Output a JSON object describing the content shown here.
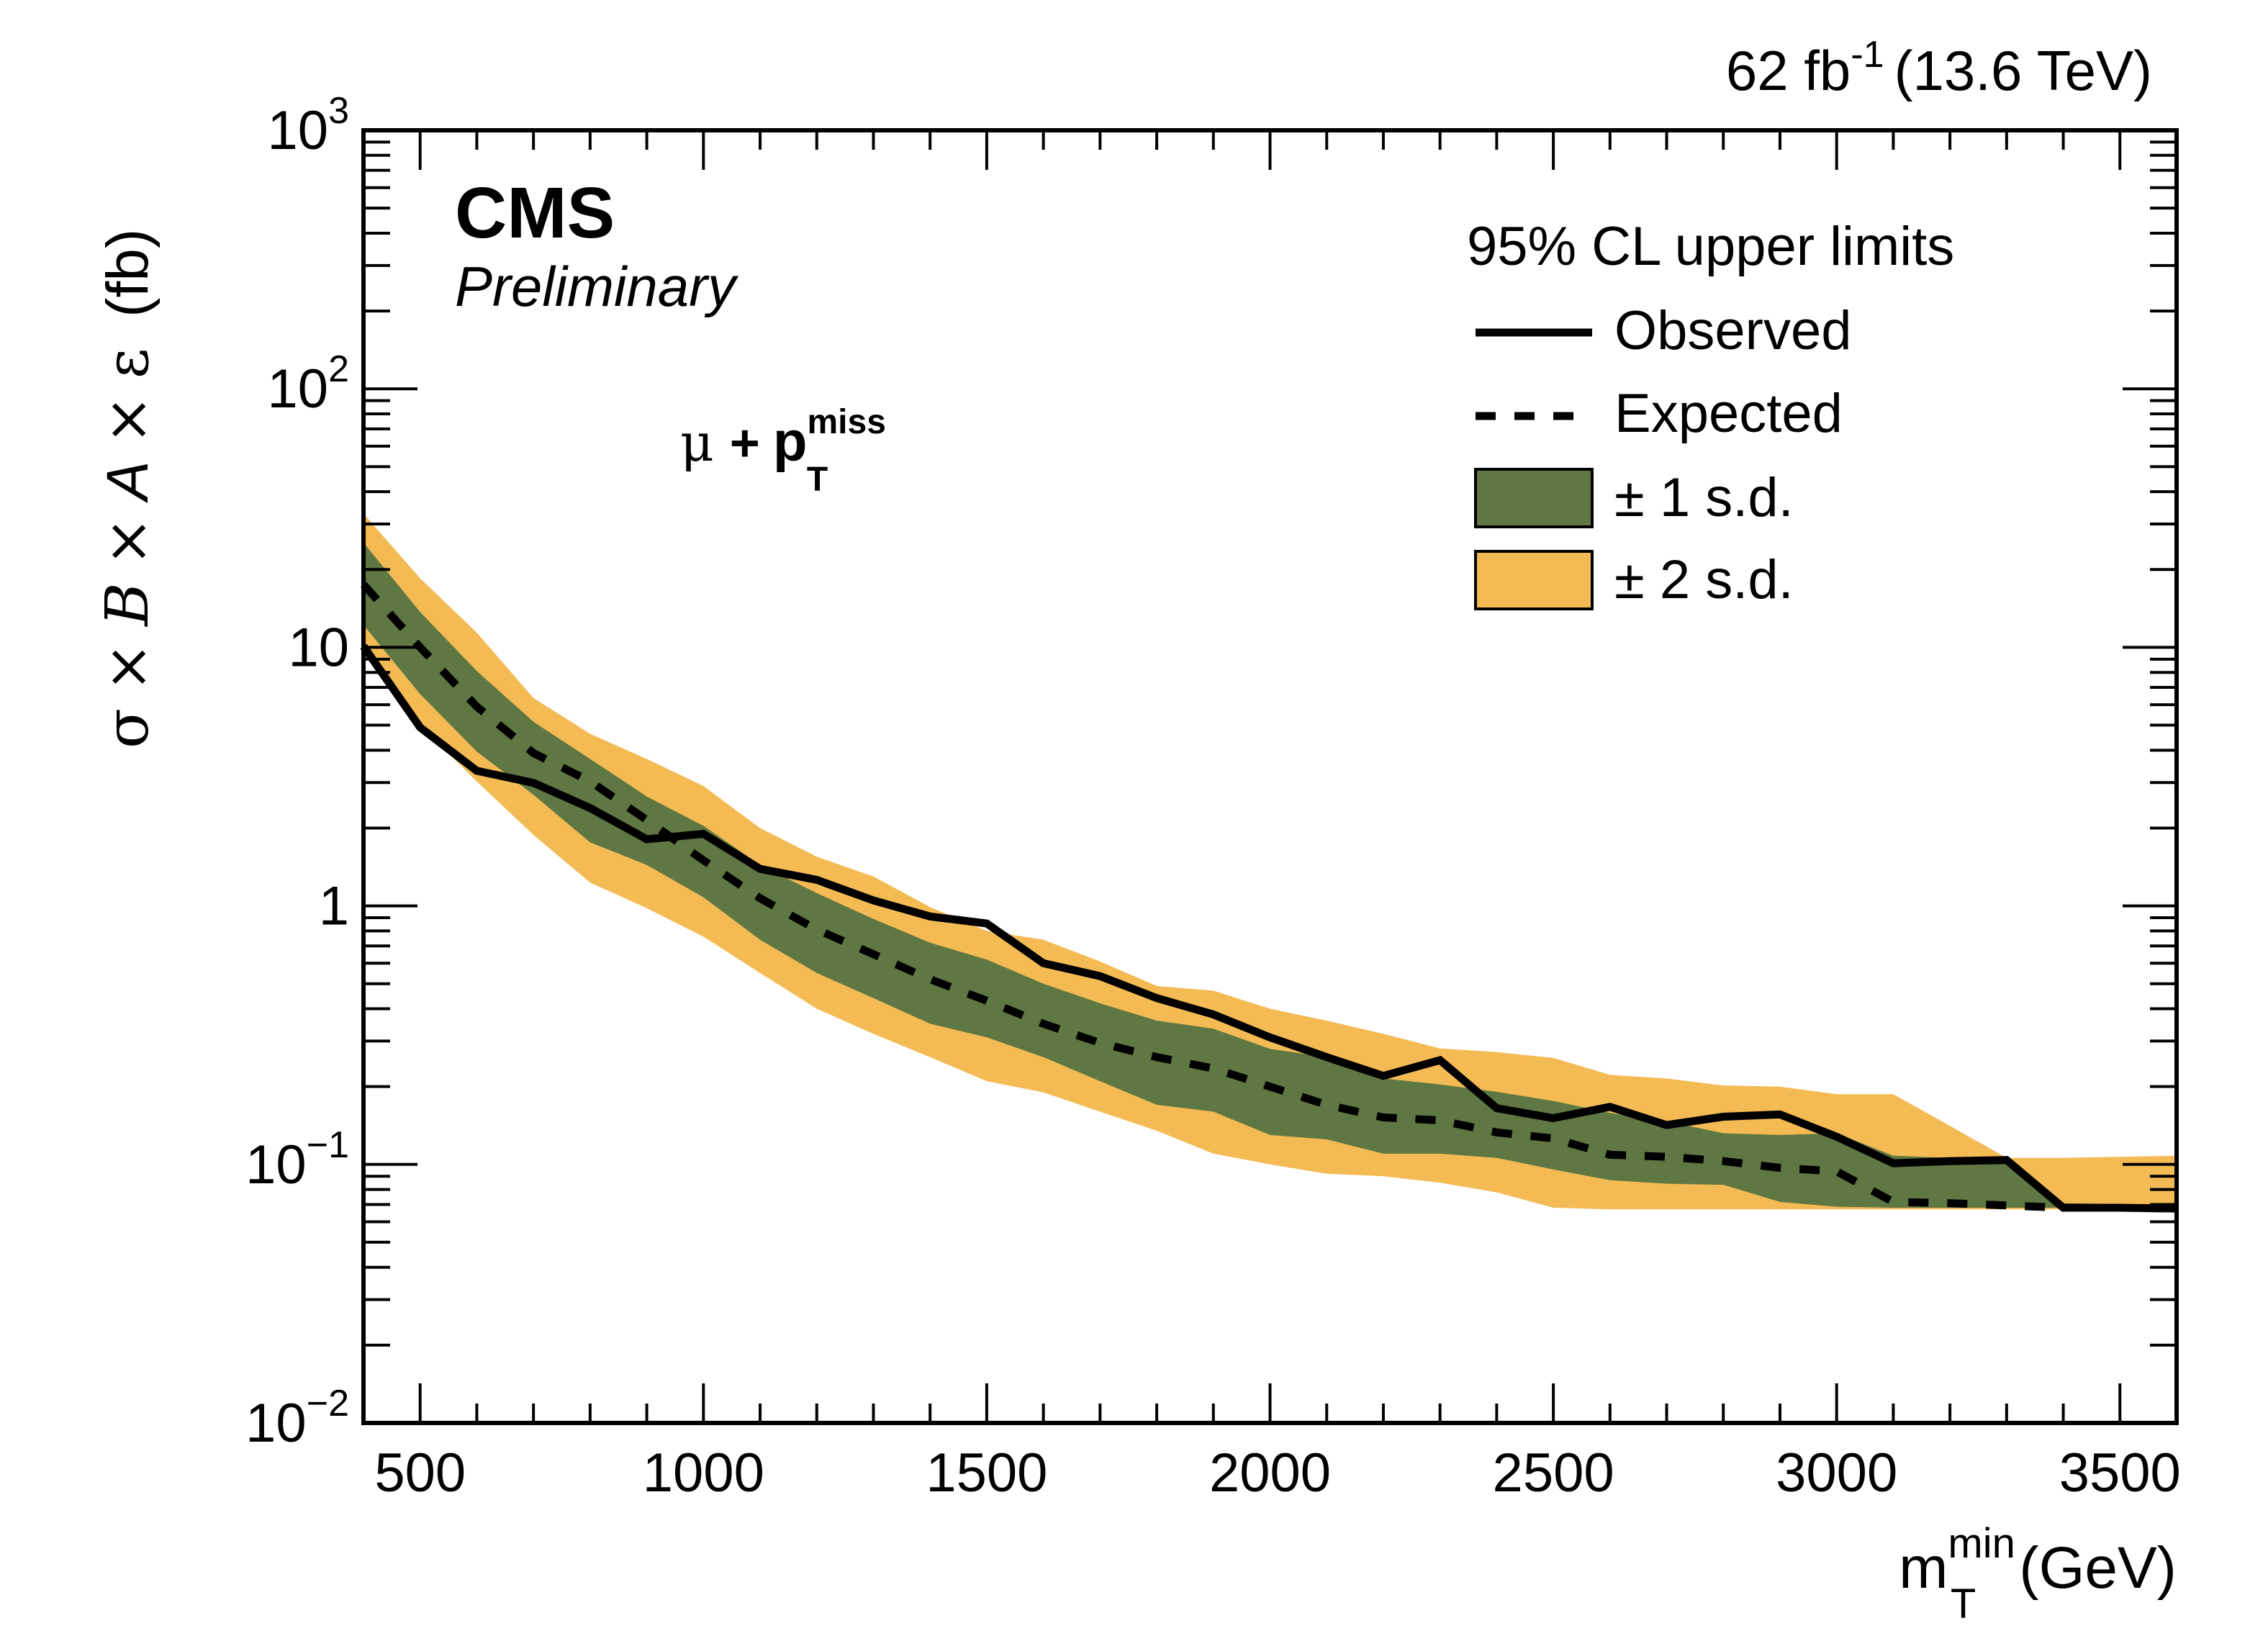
{
  "chart_data": {
    "type": "line",
    "title": "",
    "experiment_label": "CMS",
    "experiment_sublabel": "Preliminary",
    "lumi_label": {
      "value": "62 fb",
      "sup": "-1",
      "energy": "(13.6 TeV)"
    },
    "channel_label": {
      "mu": "μ",
      "plus": "+",
      "p": "p",
      "sup": "miss",
      "sub": "T"
    },
    "xlabel": {
      "main": "m",
      "sup": "min",
      "sub": "T",
      "unit": "(GeV)"
    },
    "ylabel": {
      "parts": [
        "σ",
        "×",
        "B",
        "×",
        "A",
        "×",
        "ε",
        "(fb)"
      ]
    },
    "xlim": [
      400,
      3600
    ],
    "ylim": [
      0.01,
      1000
    ],
    "yscale": "log",
    "x_ticks": [
      500,
      1000,
      1500,
      2000,
      2500,
      3000,
      3500
    ],
    "x_tick_labels": [
      "500",
      "1000",
      "1500",
      "2000",
      "2500",
      "3000",
      "3500"
    ],
    "y_ticks": [
      {
        "value": 0.01,
        "base": "10",
        "exp": "−2"
      },
      {
        "value": 0.1,
        "base": "10",
        "exp": "−1"
      },
      {
        "value": 1,
        "base": "1",
        "exp": ""
      },
      {
        "value": 10,
        "base": "10",
        "exp": ""
      },
      {
        "value": 100,
        "base": "10",
        "exp": "2"
      },
      {
        "value": 1000,
        "base": "10",
        "exp": "3"
      }
    ],
    "grid": false,
    "legend": {
      "position": "top-right",
      "header": "95% CL upper limits",
      "entries": [
        {
          "label": "Observed",
          "style": "solid"
        },
        {
          "label": "Expected",
          "style": "dashed"
        },
        {
          "label": "± 1 s.d.",
          "style": "band",
          "color": "#5f7742"
        },
        {
          "label": "± 2 s.d.",
          "style": "band",
          "color": "#f4bb55"
        }
      ]
    },
    "colors": {
      "band1": "#5f7742",
      "band2": "#f4bb55",
      "line": "#000000"
    },
    "x": [
      400,
      500,
      600,
      700,
      800,
      900,
      1000,
      1100,
      1200,
      1300,
      1400,
      1500,
      1600,
      1700,
      1800,
      1900,
      2000,
      2100,
      2200,
      2300,
      2400,
      2500,
      2600,
      2700,
      2800,
      2900,
      3000,
      3100,
      3200,
      3300,
      3400,
      3500,
      3600
    ],
    "series": [
      {
        "name": "Observed",
        "values": [
          10.1,
          4.9,
          3.33,
          2.99,
          2.39,
          1.81,
          1.9,
          1.39,
          1.26,
          1.05,
          0.91,
          0.855,
          0.6,
          0.535,
          0.44,
          0.38,
          0.31,
          0.26,
          0.22,
          0.253,
          0.165,
          0.151,
          0.167,
          0.142,
          0.153,
          0.156,
          0.128,
          0.101,
          0.103,
          0.104,
          0.068,
          0.068,
          0.0675
        ]
      },
      {
        "name": "Expected",
        "values": [
          17.5,
          10.0,
          5.9,
          3.9,
          3.03,
          2.15,
          1.5,
          1.07,
          0.81,
          0.65,
          0.52,
          0.43,
          0.35,
          0.295,
          0.26,
          0.235,
          0.2,
          0.17,
          0.152,
          0.148,
          0.133,
          0.126,
          0.109,
          0.107,
          0.103,
          0.097,
          0.094,
          0.0716,
          0.0708,
          0.0694,
          0.068,
          0.068,
          0.0675
        ]
      },
      {
        "name": "+1 s.d.",
        "values": [
          25.4,
          13.7,
          8.1,
          5.15,
          3.7,
          2.65,
          2.04,
          1.44,
          1.12,
          0.89,
          0.72,
          0.62,
          0.5,
          0.42,
          0.36,
          0.335,
          0.28,
          0.26,
          0.215,
          0.204,
          0.191,
          0.176,
          0.158,
          0.147,
          0.132,
          0.13,
          0.132,
          0.108,
          0.106,
          0.101,
          0.0708,
          0.0703,
          0.07
        ]
      },
      {
        "name": "-1 s.d.",
        "values": [
          12.2,
          6.6,
          3.95,
          2.69,
          1.76,
          1.44,
          1.08,
          0.74,
          0.55,
          0.44,
          0.35,
          0.31,
          0.26,
          0.21,
          0.17,
          0.16,
          0.13,
          0.125,
          0.11,
          0.11,
          0.106,
          0.0956,
          0.0869,
          0.0842,
          0.0834,
          0.0716,
          0.0686,
          0.068,
          0.068,
          0.068,
          0.068,
          0.0675,
          0.0675
        ]
      },
      {
        "name": "+2 s.d.",
        "values": [
          32.9,
          18.5,
          11.4,
          6.37,
          4.63,
          3.7,
          2.91,
          2.0,
          1.55,
          1.3,
          0.99,
          0.8,
          0.74,
          0.61,
          0.49,
          0.47,
          0.4,
          0.36,
          0.32,
          0.281,
          0.272,
          0.258,
          0.222,
          0.215,
          0.202,
          0.2,
          0.187,
          0.187,
          0.141,
          0.106,
          0.106,
          0.107,
          0.108
        ]
      },
      {
        "name": "-2 s.d.",
        "values": [
          10.5,
          5.0,
          3.03,
          1.88,
          1.23,
          0.98,
          0.76,
          0.55,
          0.4,
          0.32,
          0.26,
          0.21,
          0.19,
          0.16,
          0.135,
          0.11,
          0.1,
          0.092,
          0.09,
          0.085,
          0.078,
          0.068,
          0.067,
          0.067,
          0.067,
          0.067,
          0.067,
          0.067,
          0.067,
          0.067,
          0.067,
          0.067,
          0.067
        ]
      }
    ]
  }
}
